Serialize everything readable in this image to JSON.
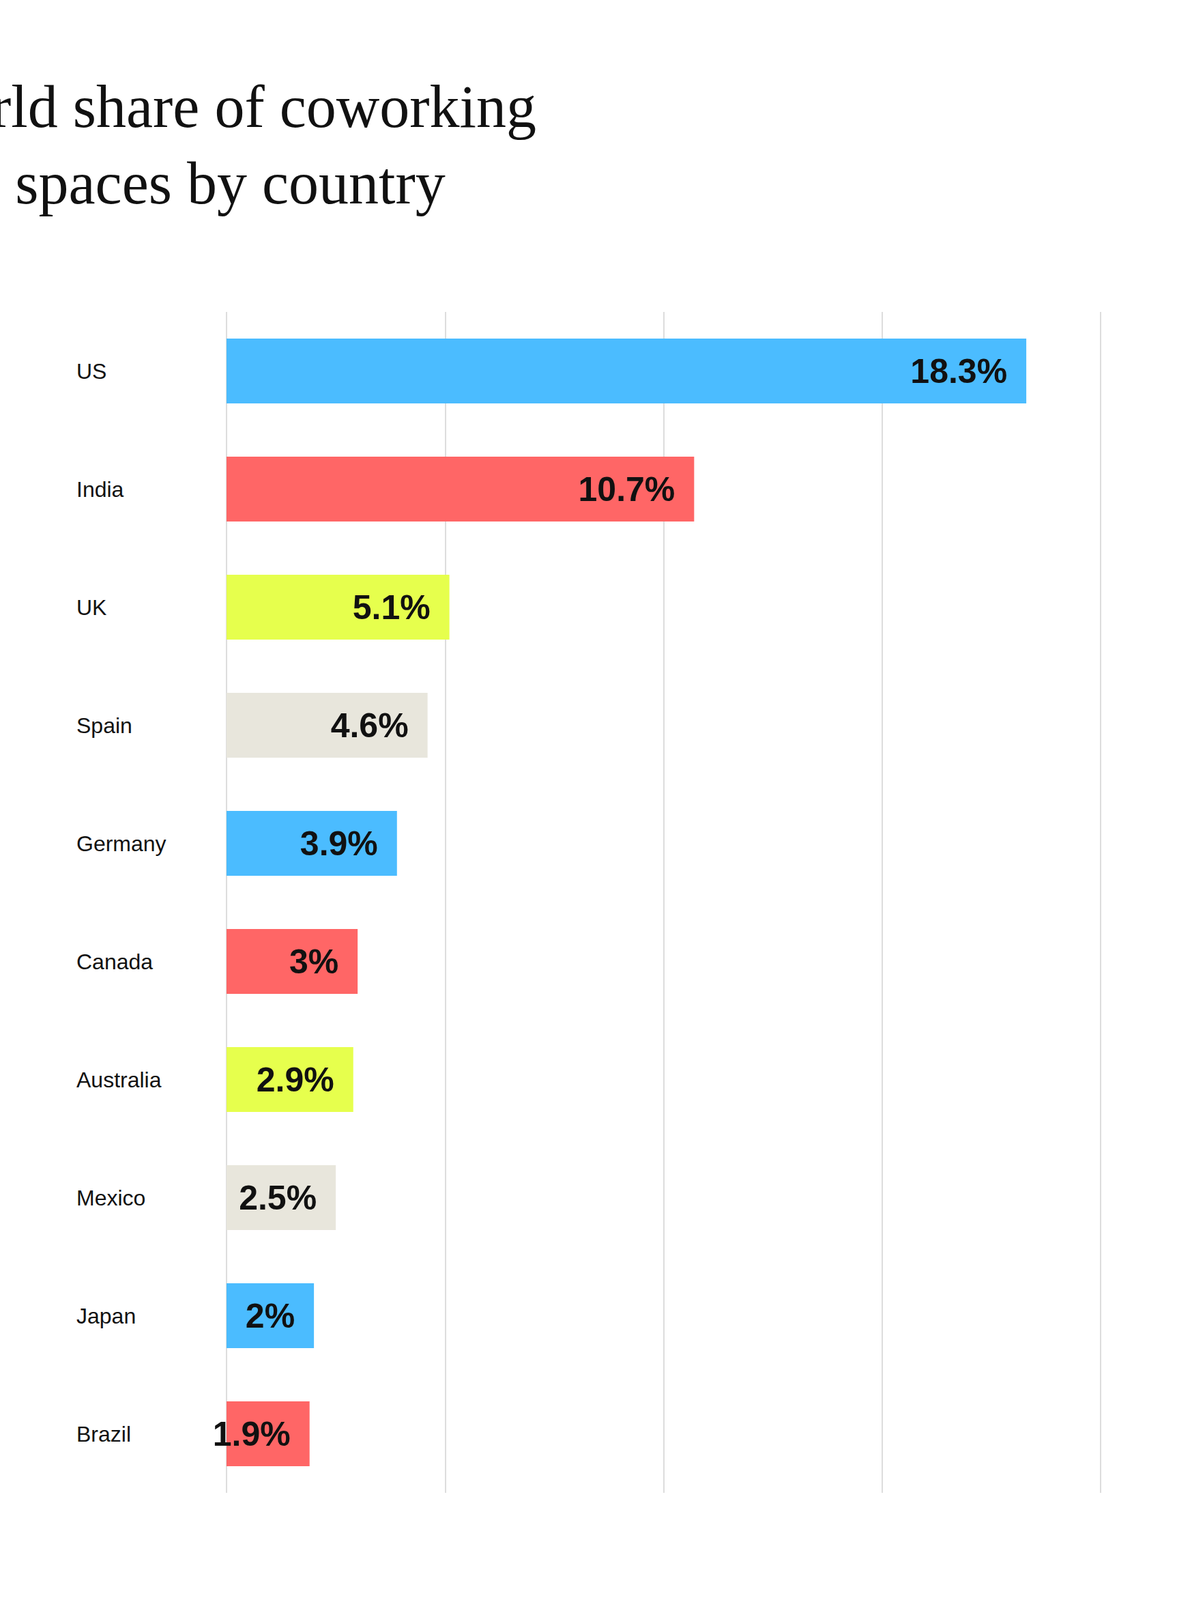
{
  "chart_data": {
    "type": "bar",
    "orientation": "horizontal",
    "title": "World share of coworking spaces by country",
    "categories": [
      "US",
      "India",
      "UK",
      "Spain",
      "Germany",
      "Canada",
      "Australia",
      "Mexico",
      "Japan",
      "Brazil"
    ],
    "values": [
      18.3,
      10.7,
      5.1,
      4.6,
      3.9,
      3,
      2.9,
      2.5,
      2,
      1.9
    ],
    "value_labels": [
      "18.3%",
      "10.7%",
      "5.1%",
      "4.6%",
      "3.9%",
      "3%",
      "2.9%",
      "2.5%",
      "2%",
      "1.9%"
    ],
    "colors": [
      "#4bbcff",
      "#ff6666",
      "#e6ff4d",
      "#e8e6dc",
      "#4bbcff",
      "#ff6666",
      "#e6ff4d",
      "#e8e6dc",
      "#4bbcff",
      "#ff6666"
    ],
    "xlim": [
      0,
      20
    ],
    "xticks": [
      0,
      5,
      10,
      15,
      20
    ],
    "grid": true,
    "data_labels": true,
    "tick_labels": "y"
  }
}
